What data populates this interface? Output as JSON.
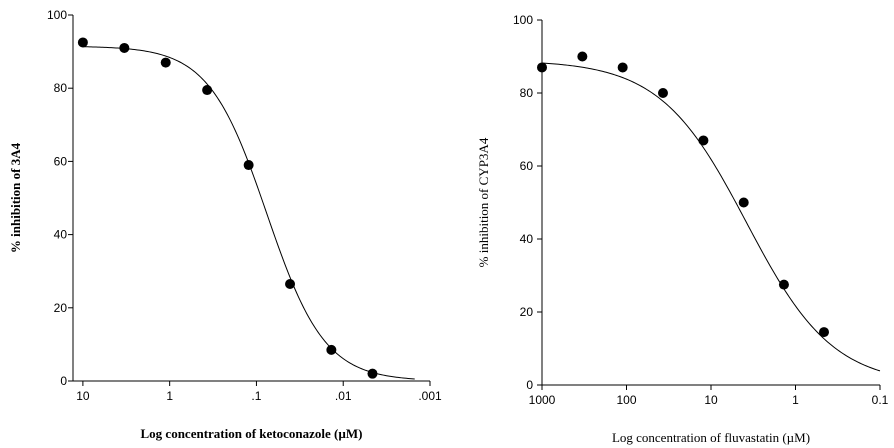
{
  "chart_data": [
    {
      "type": "scatter",
      "xlabel": "Log concentration of ketoconazole (µM)",
      "ylabel": "% inhibition of 3A4",
      "x_scale": "log",
      "x_reversed": true,
      "xlim": [
        13,
        0.001
      ],
      "ylim": [
        0,
        100
      ],
      "x_ticks": [
        10,
        1,
        0.1,
        0.01,
        0.001
      ],
      "x_tick_labels": [
        "10",
        "1",
        ".1",
        ".01",
        ".001"
      ],
      "y_ticks": [
        0,
        20,
        40,
        60,
        80,
        100
      ],
      "y_tick_labels": [
        "0",
        "20",
        "40",
        "60",
        "80",
        "100"
      ],
      "grid": false,
      "series": [
        {
          "x": [
            10,
            3.33,
            1.11,
            0.37,
            0.123,
            0.041,
            0.0137,
            0.0046
          ],
          "y": [
            92.5,
            91,
            87,
            79.5,
            59,
            26.5,
            8.5,
            2
          ]
        }
      ],
      "fit": {
        "top": 91.5,
        "bottom": 0,
        "ic50": 0.076,
        "hill": 1.3,
        "x_range": [
          10,
          0.0015
        ]
      },
      "color": "#000000"
    },
    {
      "type": "scatter",
      "xlabel": "Log concentration of fluvastatin (µM)",
      "ylabel": "% inhibition of CYP3A4",
      "x_scale": "log",
      "x_reversed": true,
      "xlim": [
        1000,
        0.1
      ],
      "ylim": [
        0,
        100
      ],
      "x_ticks": [
        1000,
        100,
        10,
        1,
        0.1
      ],
      "x_tick_labels": [
        "1000",
        "100",
        "10",
        "1",
        "0.1"
      ],
      "y_ticks": [
        0,
        20,
        40,
        60,
        80,
        100
      ],
      "y_tick_labels": [
        "0",
        "20",
        "40",
        "60",
        "80",
        "100"
      ],
      "grid": false,
      "series": [
        {
          "x": [
            1000,
            333,
            111,
            37,
            12.3,
            4.1,
            1.37,
            0.46
          ],
          "y": [
            87,
            90,
            87,
            80,
            67,
            50,
            27.5,
            14.5
          ]
        }
      ],
      "fit": {
        "top": 89,
        "bottom": 0,
        "ic50": 3.8,
        "hill": 0.85,
        "x_range": [
          1000,
          0.1
        ]
      },
      "color": "#000000"
    }
  ]
}
